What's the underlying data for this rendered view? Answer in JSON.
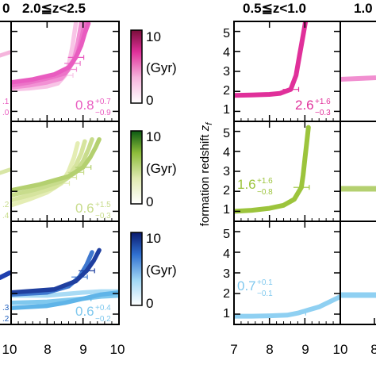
{
  "figure": {
    "left_title": "2.0≦z<2.5",
    "right_title": "0.5≦z<1.0",
    "clipped_left_title": "0",
    "clipped_right_title": "1.0",
    "ylabel_main": "formation redshift ",
    "ylabel_sub": "f",
    "ylabel_var": "z"
  },
  "colorbars": [
    {
      "top_label": "10",
      "mid_label": "(Gyr)",
      "bottom_label": "0",
      "color_top": "#7a0d3a",
      "color_bottom": "#ffffff"
    },
    {
      "top_label": "10",
      "mid_label": "(Gyr)",
      "bottom_label": "0",
      "color_top": "#0b5a12",
      "color_bottom": "#ffffff"
    },
    {
      "top_label": "10",
      "mid_label": "(Gyr)",
      "bottom_label": "0",
      "color_top": "#0a1a6e",
      "color_bottom": "#ffffff"
    }
  ],
  "annotations": {
    "left": [
      {
        "value": "0.8",
        "plus": "+0.7",
        "minus": "−0.9",
        "color": "#e95cc0"
      },
      {
        "value": "0.6",
        "plus": "+1.5",
        "minus": "−0.3",
        "color": "#c8dc8c"
      },
      {
        "value": "0.6",
        "plus": "+0.4",
        "minus": "−0.2",
        "color": "#7fc8ee"
      }
    ],
    "right": [
      {
        "value": "2.6",
        "plus": "+1.6",
        "minus": "−0.3",
        "color": "#e0309a"
      },
      {
        "value": "1.6",
        "plus": "+1.6",
        "minus": "−0.8",
        "color": "#9cc43c"
      },
      {
        "value": "0.7",
        "plus": "+0.1",
        "minus": "−0.1",
        "color": "#7fc8ee"
      }
    ],
    "clipped_left": [
      {
        "text": ".1",
        "color": "#e95cc0"
      },
      {
        "text": ".0",
        "color": "#e95cc0"
      },
      {
        "text": ".2",
        "color": "#c8dc8c"
      },
      {
        "text": ".4",
        "color": "#c8dc8c"
      },
      {
        "text": ".3",
        "color": "#1f5fbf"
      },
      {
        "text": ".2",
        "color": "#1f5fbf"
      }
    ]
  },
  "axes": {
    "left_x_ticks": [
      "10",
      "8",
      "9",
      "10"
    ],
    "right_x_ticks": [
      "7",
      "8",
      "9",
      "10"
    ],
    "clipped_right_x_tick": "8",
    "y_ticks": [
      "1",
      "2",
      "3",
      "4",
      "5"
    ]
  },
  "chart_data": {
    "type": "line",
    "xlabel": "",
    "ylabel": "formation redshift z_f",
    "xlim": [
      7,
      10
    ],
    "ylim": [
      0.5,
      5.5
    ],
    "panels": [
      {
        "position": "left-top",
        "series": [
          {
            "x": [
              7.0,
              7.5,
              8.0,
              8.3,
              8.5,
              8.6,
              8.7,
              8.8
            ],
            "y": [
              2.1,
              2.15,
              2.25,
              2.4,
              2.8,
              3.3,
              4.2,
              5.4
            ]
          },
          {
            "x": [
              7.0,
              7.5,
              8.0,
              8.4,
              8.6,
              8.75,
              8.85,
              8.95
            ],
            "y": [
              2.2,
              2.3,
              2.45,
              2.65,
              3.1,
              3.6,
              4.4,
              5.4
            ]
          },
          {
            "x": [
              7.0,
              7.5,
              8.0,
              8.5,
              8.7,
              8.85,
              8.95,
              9.05
            ],
            "y": [
              2.3,
              2.45,
              2.65,
              2.9,
              3.4,
              3.9,
              4.6,
              5.4
            ]
          },
          {
            "x": [
              7.0,
              7.6,
              8.2,
              8.6,
              8.8,
              8.95,
              9.05,
              9.15
            ],
            "y": [
              2.45,
              2.6,
              2.85,
              3.2,
              3.7,
              4.3,
              4.9,
              5.4
            ]
          }
        ]
      },
      {
        "position": "left-middle",
        "series": [
          {
            "x": [
              7.0,
              7.5,
              8.0,
              8.4,
              8.6,
              8.75,
              8.85
            ],
            "y": [
              1.3,
              1.6,
              1.95,
              2.4,
              3.0,
              3.7,
              4.4
            ]
          },
          {
            "x": [
              7.0,
              7.6,
              8.2,
              8.6,
              8.8,
              8.95,
              9.05
            ],
            "y": [
              1.55,
              1.85,
              2.2,
              2.7,
              3.3,
              3.9,
              4.5
            ]
          },
          {
            "x": [
              7.0,
              7.7,
              8.4,
              8.8,
              9.0,
              9.15,
              9.25
            ],
            "y": [
              1.8,
              2.1,
              2.5,
              2.95,
              3.5,
              4.1,
              4.6
            ]
          },
          {
            "x": [
              7.0,
              7.8,
              8.6,
              9.0,
              9.2,
              9.35,
              9.45
            ],
            "y": [
              2.05,
              2.35,
              2.75,
              3.2,
              3.7,
              4.2,
              4.6
            ]
          }
        ]
      },
      {
        "position": "left-bottom",
        "series": [
          {
            "x": [
              7.0,
              8.0,
              9.0,
              9.5,
              10.0
            ],
            "y": [
              1.9,
              1.9,
              2.05,
              2.1,
              2.1
            ]
          },
          {
            "x": [
              7.0,
              8.0,
              9.0,
              9.5,
              10.0
            ],
            "y": [
              1.55,
              1.6,
              1.75,
              1.85,
              1.9
            ]
          },
          {
            "x": [
              7.0,
              8.0,
              8.5,
              9.0,
              9.5,
              10.0
            ],
            "y": [
              1.3,
              1.4,
              1.55,
              1.75,
              1.95,
              2.05
            ]
          },
          {
            "x": [
              7.0,
              8.0,
              8.6,
              8.9,
              9.1,
              9.25
            ],
            "y": [
              1.95,
              2.05,
              2.35,
              2.8,
              3.4,
              4.0
            ]
          },
          {
            "x": [
              7.0,
              8.2,
              8.8,
              9.1,
              9.3,
              9.45
            ],
            "y": [
              2.05,
              2.2,
              2.6,
              3.1,
              3.6,
              4.1
            ]
          }
        ]
      },
      {
        "position": "right-top",
        "series": [
          {
            "x": [
              7.0,
              7.5,
              8.0,
              8.3,
              8.6,
              8.75,
              8.85,
              8.95,
              9.02
            ],
            "y": [
              1.8,
              1.82,
              1.85,
              1.9,
              2.1,
              2.8,
              3.8,
              4.8,
              5.5
            ]
          }
        ]
      },
      {
        "position": "right-middle",
        "series": [
          {
            "x": [
              7.0,
              7.5,
              8.0,
              8.4,
              8.7,
              8.9,
              8.95,
              9.0,
              9.05,
              9.1
            ],
            "y": [
              1.0,
              1.05,
              1.15,
              1.3,
              1.6,
              2.2,
              2.8,
              3.6,
              4.4,
              5.2
            ]
          }
        ]
      },
      {
        "position": "right-bottom",
        "series": [
          {
            "x": [
              7.0,
              7.5,
              8.0,
              8.5,
              8.8,
              9.1,
              9.4,
              9.7,
              10.0
            ],
            "y": [
              0.9,
              0.9,
              0.92,
              0.95,
              1.05,
              1.2,
              1.35,
              1.6,
              1.85
            ]
          }
        ]
      }
    ]
  }
}
